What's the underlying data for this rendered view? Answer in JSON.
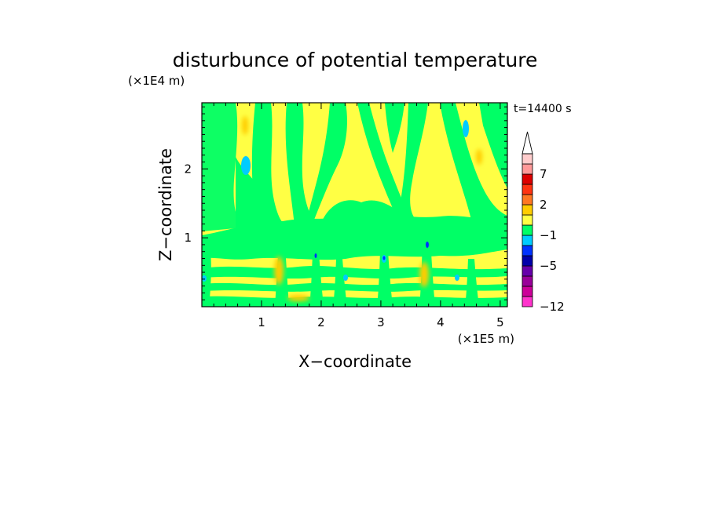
{
  "chart_data": {
    "type": "heatmap",
    "title": "disturbunce of potential temperature",
    "xlabel": "X−coordinate",
    "ylabel": "Z−coordinate",
    "x_unit": "(×1E5 m)",
    "y_unit": "(×1E4 m)",
    "time_label": "t=14400 s",
    "xlim": [
      0,
      5.12
    ],
    "ylim": [
      0,
      2.96
    ],
    "x_ticks": [
      1,
      2,
      3,
      4,
      5
    ],
    "x_tick_labels": [
      "1",
      "2",
      "3",
      "4",
      "5"
    ],
    "y_ticks": [
      1,
      2
    ],
    "y_tick_labels": [
      "1",
      "2"
    ],
    "colorbar": {
      "levels": [
        -12,
        -10,
        -8,
        -6,
        -5,
        -4,
        -2,
        -1,
        0,
        1,
        2,
        3,
        5,
        7,
        9,
        11
      ],
      "colors": [
        "#ff33cc",
        "#cc0099",
        "#990099",
        "#6600aa",
        "#0000aa",
        "#0033ff",
        "#00ccff",
        "#00ff66",
        "#ffff44",
        "#ffcc00",
        "#ff7722",
        "#ff3311",
        "#dd0000",
        "#ff9999",
        "#ffcccc"
      ],
      "labels": [
        {
          "value": 7,
          "text": "7"
        },
        {
          "value": 2,
          "text": "2"
        },
        {
          "value": -1,
          "text": "−1"
        },
        {
          "value": -5,
          "text": "−5"
        },
        {
          "value": -12,
          "text": "−12"
        }
      ],
      "extend": "max"
    },
    "field_summary": {
      "dominant_levels": [
        "0 to 1 (yellow)",
        "-1 to 0 (green)"
      ],
      "green_band_z": [
        0.8,
        1.35
      ],
      "cool_spots": [
        {
          "x": 0.75,
          "z": 2.1,
          "value": -1.5
        },
        {
          "x": 4.42,
          "z": 2.6,
          "value": -1.5
        },
        {
          "x": 3.05,
          "z": 0.75,
          "value": -3
        },
        {
          "x": 3.78,
          "z": 0.95,
          "value": -3
        }
      ]
    }
  }
}
